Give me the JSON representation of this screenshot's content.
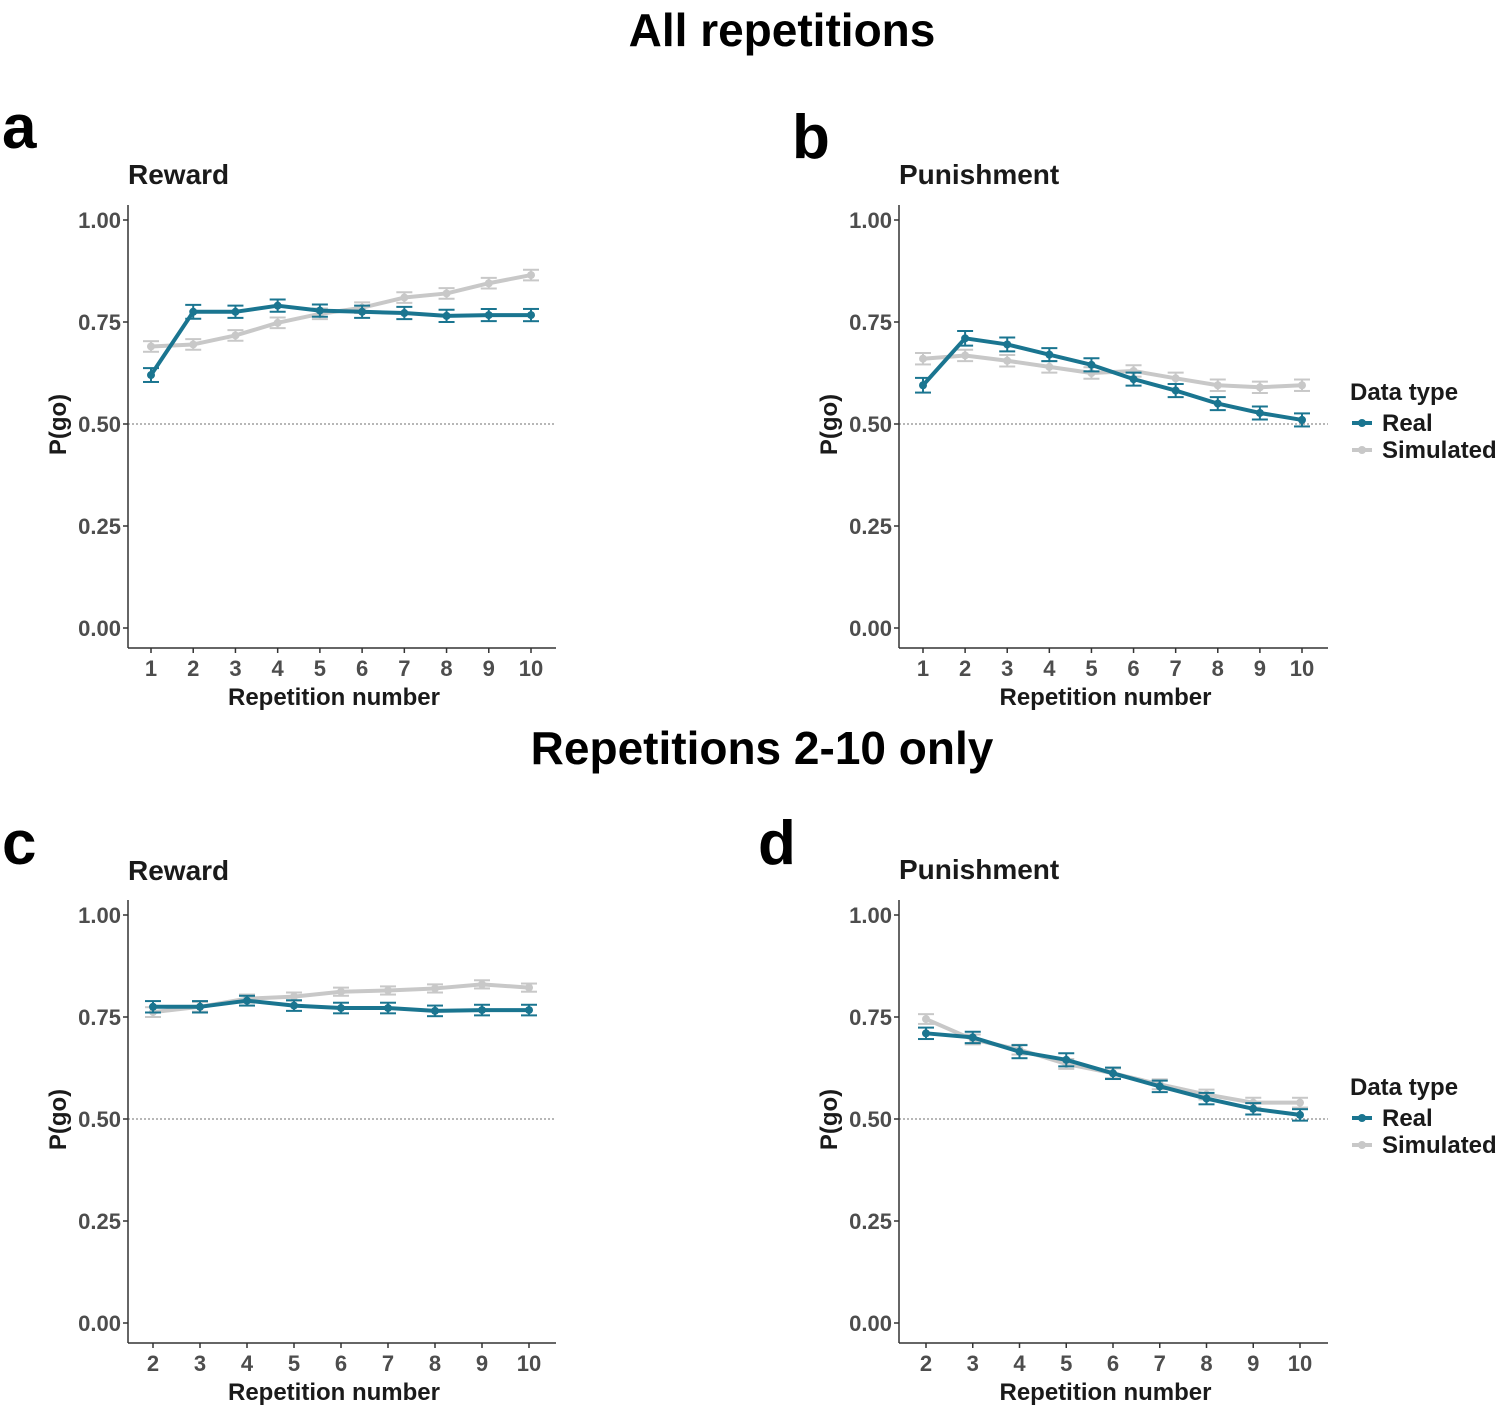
{
  "sections": {
    "top_title": "All repetitions",
    "bottom_title": "Repetitions 2-10 only"
  },
  "legend": {
    "title": "Data type",
    "items": [
      {
        "label": "Real",
        "color": "#1a7590"
      },
      {
        "label": "Simulated",
        "color": "#c8c8c8"
      }
    ]
  },
  "chart_data": [
    {
      "panel": "a",
      "type": "line",
      "title": "Reward",
      "xlabel": "Repetition number",
      "ylabel": "P(go)",
      "ylim": [
        0,
        1
      ],
      "yticks": [
        "0.00",
        "0.25",
        "0.50",
        "0.75",
        "1.00"
      ],
      "reference_line": 0.5,
      "x": [
        1,
        2,
        3,
        4,
        5,
        6,
        7,
        8,
        9,
        10
      ],
      "series": [
        {
          "name": "Real",
          "values": [
            0.62,
            0.775,
            0.775,
            0.79,
            0.778,
            0.775,
            0.772,
            0.765,
            0.767,
            0.767
          ],
          "errors": [
            0.017,
            0.017,
            0.015,
            0.015,
            0.015,
            0.015,
            0.015,
            0.015,
            0.015,
            0.015
          ]
        },
        {
          "name": "Simulated",
          "values": [
            0.69,
            0.695,
            0.717,
            0.748,
            0.77,
            0.785,
            0.81,
            0.82,
            0.845,
            0.865
          ],
          "errors": [
            0.013,
            0.013,
            0.013,
            0.013,
            0.013,
            0.013,
            0.013,
            0.013,
            0.013,
            0.013
          ]
        }
      ],
      "show_legend": false
    },
    {
      "panel": "b",
      "type": "line",
      "title": "Punishment",
      "xlabel": "Repetition number",
      "ylabel": "P(go)",
      "ylim": [
        0,
        1
      ],
      "yticks": [
        "0.00",
        "0.25",
        "0.50",
        "0.75",
        "1.00"
      ],
      "reference_line": 0.5,
      "x": [
        1,
        2,
        3,
        4,
        5,
        6,
        7,
        8,
        9,
        10
      ],
      "series": [
        {
          "name": "Real",
          "values": [
            0.595,
            0.71,
            0.695,
            0.67,
            0.645,
            0.61,
            0.582,
            0.55,
            0.527,
            0.51
          ],
          "errors": [
            0.018,
            0.018,
            0.017,
            0.016,
            0.016,
            0.016,
            0.016,
            0.016,
            0.016,
            0.016
          ]
        },
        {
          "name": "Simulated",
          "values": [
            0.66,
            0.668,
            0.655,
            0.64,
            0.625,
            0.63,
            0.612,
            0.595,
            0.59,
            0.595
          ],
          "errors": [
            0.014,
            0.014,
            0.014,
            0.014,
            0.014,
            0.014,
            0.014,
            0.014,
            0.014,
            0.014
          ]
        }
      ],
      "show_legend": true
    },
    {
      "panel": "c",
      "type": "line",
      "title": "Reward",
      "xlabel": "Repetition number",
      "ylabel": "P(go)",
      "ylim": [
        0,
        1
      ],
      "yticks": [
        "0.00",
        "0.25",
        "0.50",
        "0.75",
        "1.00"
      ],
      "reference_line": 0.5,
      "x": [
        2,
        3,
        4,
        5,
        6,
        7,
        8,
        9,
        10
      ],
      "series": [
        {
          "name": "Real",
          "values": [
            0.775,
            0.775,
            0.79,
            0.778,
            0.772,
            0.772,
            0.765,
            0.767,
            0.767
          ],
          "errors": [
            0.014,
            0.014,
            0.012,
            0.013,
            0.013,
            0.013,
            0.013,
            0.013,
            0.013
          ]
        },
        {
          "name": "Simulated",
          "values": [
            0.762,
            0.775,
            0.795,
            0.8,
            0.812,
            0.815,
            0.82,
            0.83,
            0.822
          ],
          "errors": [
            0.012,
            0.012,
            0.01,
            0.01,
            0.01,
            0.01,
            0.01,
            0.01,
            0.01
          ]
        }
      ],
      "show_legend": false
    },
    {
      "panel": "d",
      "type": "line",
      "title": "Punishment",
      "xlabel": "Repetition number",
      "ylabel": "P(go)",
      "ylim": [
        0,
        1
      ],
      "yticks": [
        "0.00",
        "0.25",
        "0.50",
        "0.75",
        "1.00"
      ],
      "reference_line": 0.5,
      "x": [
        2,
        3,
        4,
        5,
        6,
        7,
        8,
        9,
        10
      ],
      "series": [
        {
          "name": "Real",
          "values": [
            0.71,
            0.7,
            0.665,
            0.645,
            0.612,
            0.58,
            0.55,
            0.525,
            0.51
          ],
          "errors": [
            0.014,
            0.014,
            0.016,
            0.016,
            0.014,
            0.014,
            0.014,
            0.014,
            0.014
          ]
        },
        {
          "name": "Simulated",
          "values": [
            0.745,
            0.695,
            0.67,
            0.635,
            0.612,
            0.585,
            0.56,
            0.54,
            0.54
          ],
          "errors": [
            0.012,
            0.012,
            0.012,
            0.012,
            0.012,
            0.012,
            0.012,
            0.012,
            0.012
          ]
        }
      ],
      "show_legend": true
    }
  ]
}
